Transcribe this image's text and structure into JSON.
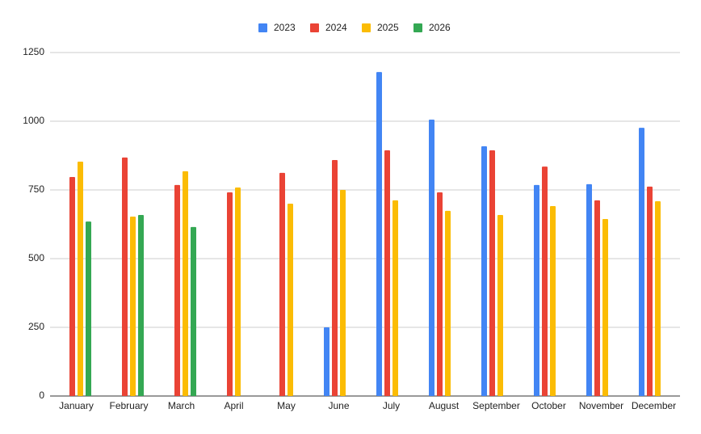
{
  "chart_data": {
    "type": "bar",
    "categories": [
      "January",
      "February",
      "March",
      "April",
      "May",
      "June",
      "July",
      "August",
      "September",
      "October",
      "November",
      "December"
    ],
    "series": [
      {
        "name": "2023",
        "color": "#4285f4",
        "values": [
          null,
          null,
          null,
          null,
          null,
          250,
          1179,
          1006,
          909,
          768,
          771,
          976
        ]
      },
      {
        "name": "2024",
        "color": "#ea4335",
        "values": [
          797,
          868,
          768,
          741,
          812,
          859,
          894,
          741,
          894,
          835,
          712,
          762
        ]
      },
      {
        "name": "2025",
        "color": "#fbbc04",
        "values": [
          853,
          653,
          818,
          759,
          700,
          750,
          712,
          674,
          659,
          691,
          644,
          709
        ]
      },
      {
        "name": "2026",
        "color": "#34a853",
        "values": [
          635,
          659,
          615,
          null,
          null,
          null,
          null,
          null,
          null,
          null,
          null,
          null
        ]
      }
    ],
    "ylim": [
      0,
      1250
    ],
    "yticks": [
      0,
      250,
      500,
      750,
      1000,
      1250
    ],
    "grid": true,
    "legend": "top"
  }
}
